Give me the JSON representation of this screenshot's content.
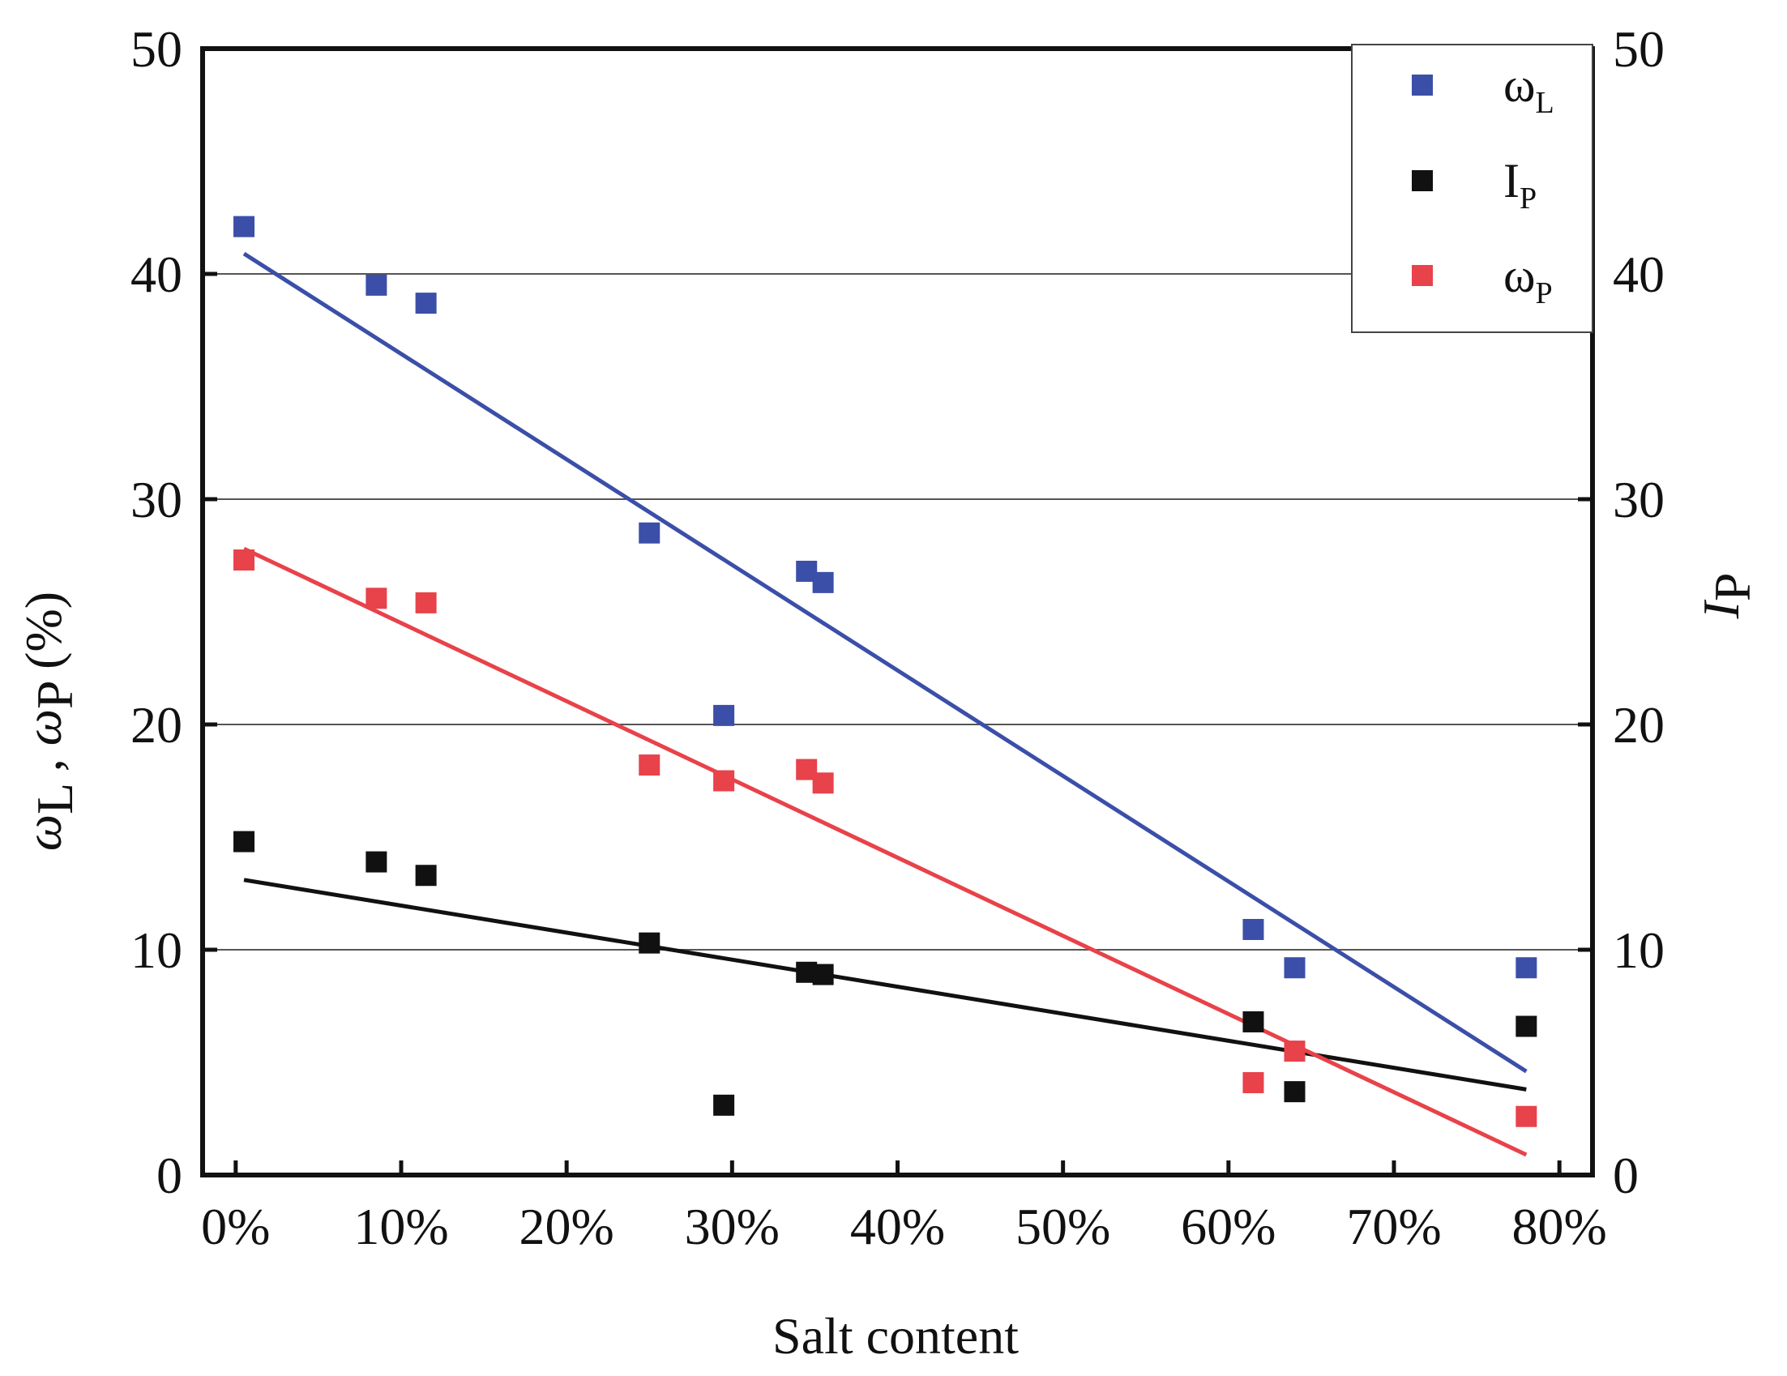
{
  "chart_data": {
    "type": "scatter",
    "xlabel": "Salt content",
    "ylabel_left": {
      "parts": [
        "ω",
        "L",
        " , ",
        "ω",
        "P",
        " (%)"
      ]
    },
    "ylabel_right": {
      "main": "I",
      "sub": "P"
    },
    "xlim": [
      -0.02,
      0.82
    ],
    "ylim": [
      0,
      50
    ],
    "x_ticks": [
      0,
      0.1,
      0.2,
      0.3,
      0.4,
      0.5,
      0.6,
      0.7,
      0.8
    ],
    "x_tick_labels": [
      "0%",
      "10%",
      "20%",
      "30%",
      "40%",
      "50%",
      "60%",
      "70%",
      "80%"
    ],
    "y_ticks": [
      0,
      10,
      20,
      30,
      40,
      50
    ],
    "y_tick_labels": [
      "0",
      "10",
      "20",
      "30",
      "40",
      "50"
    ],
    "y_right_ticks": [
      0,
      10,
      20,
      30,
      40,
      50
    ],
    "y_right_tick_labels": [
      "0",
      "10",
      "20",
      "30",
      "40",
      "50"
    ],
    "grid_y": true,
    "legend_position": "top-right",
    "series": [
      {
        "name": "ωL",
        "legend_main": "ω",
        "legend_sub": "L",
        "color": "#3b4fa8",
        "x": [
          0.005,
          0.085,
          0.115,
          0.25,
          0.295,
          0.345,
          0.355,
          0.615,
          0.64,
          0.78
        ],
        "y": [
          42.1,
          39.5,
          38.7,
          28.5,
          20.4,
          26.8,
          26.3,
          10.9,
          9.2,
          9.2
        ],
        "fit": {
          "x": [
            0.005,
            0.78
          ],
          "y": [
            40.9,
            4.6
          ]
        }
      },
      {
        "name": "IP",
        "legend_main": "I",
        "legend_sub": "P",
        "color": "#111111",
        "x": [
          0.005,
          0.085,
          0.115,
          0.25,
          0.295,
          0.345,
          0.355,
          0.615,
          0.64,
          0.78
        ],
        "y": [
          14.8,
          13.9,
          13.3,
          10.3,
          3.1,
          9.0,
          8.9,
          6.8,
          3.7,
          6.6
        ],
        "fit": {
          "x": [
            0.005,
            0.78
          ],
          "y": [
            13.1,
            3.8
          ]
        }
      },
      {
        "name": "ωP",
        "legend_main": "ω",
        "legend_sub": "P",
        "color": "#e8424a",
        "x": [
          0.005,
          0.085,
          0.115,
          0.25,
          0.295,
          0.345,
          0.355,
          0.615,
          0.64,
          0.78
        ],
        "y": [
          27.3,
          25.6,
          25.4,
          18.2,
          17.5,
          18.0,
          17.4,
          4.1,
          5.5,
          2.6
        ],
        "fit": {
          "x": [
            0.005,
            0.78
          ],
          "y": [
            27.8,
            0.9
          ]
        }
      }
    ]
  }
}
